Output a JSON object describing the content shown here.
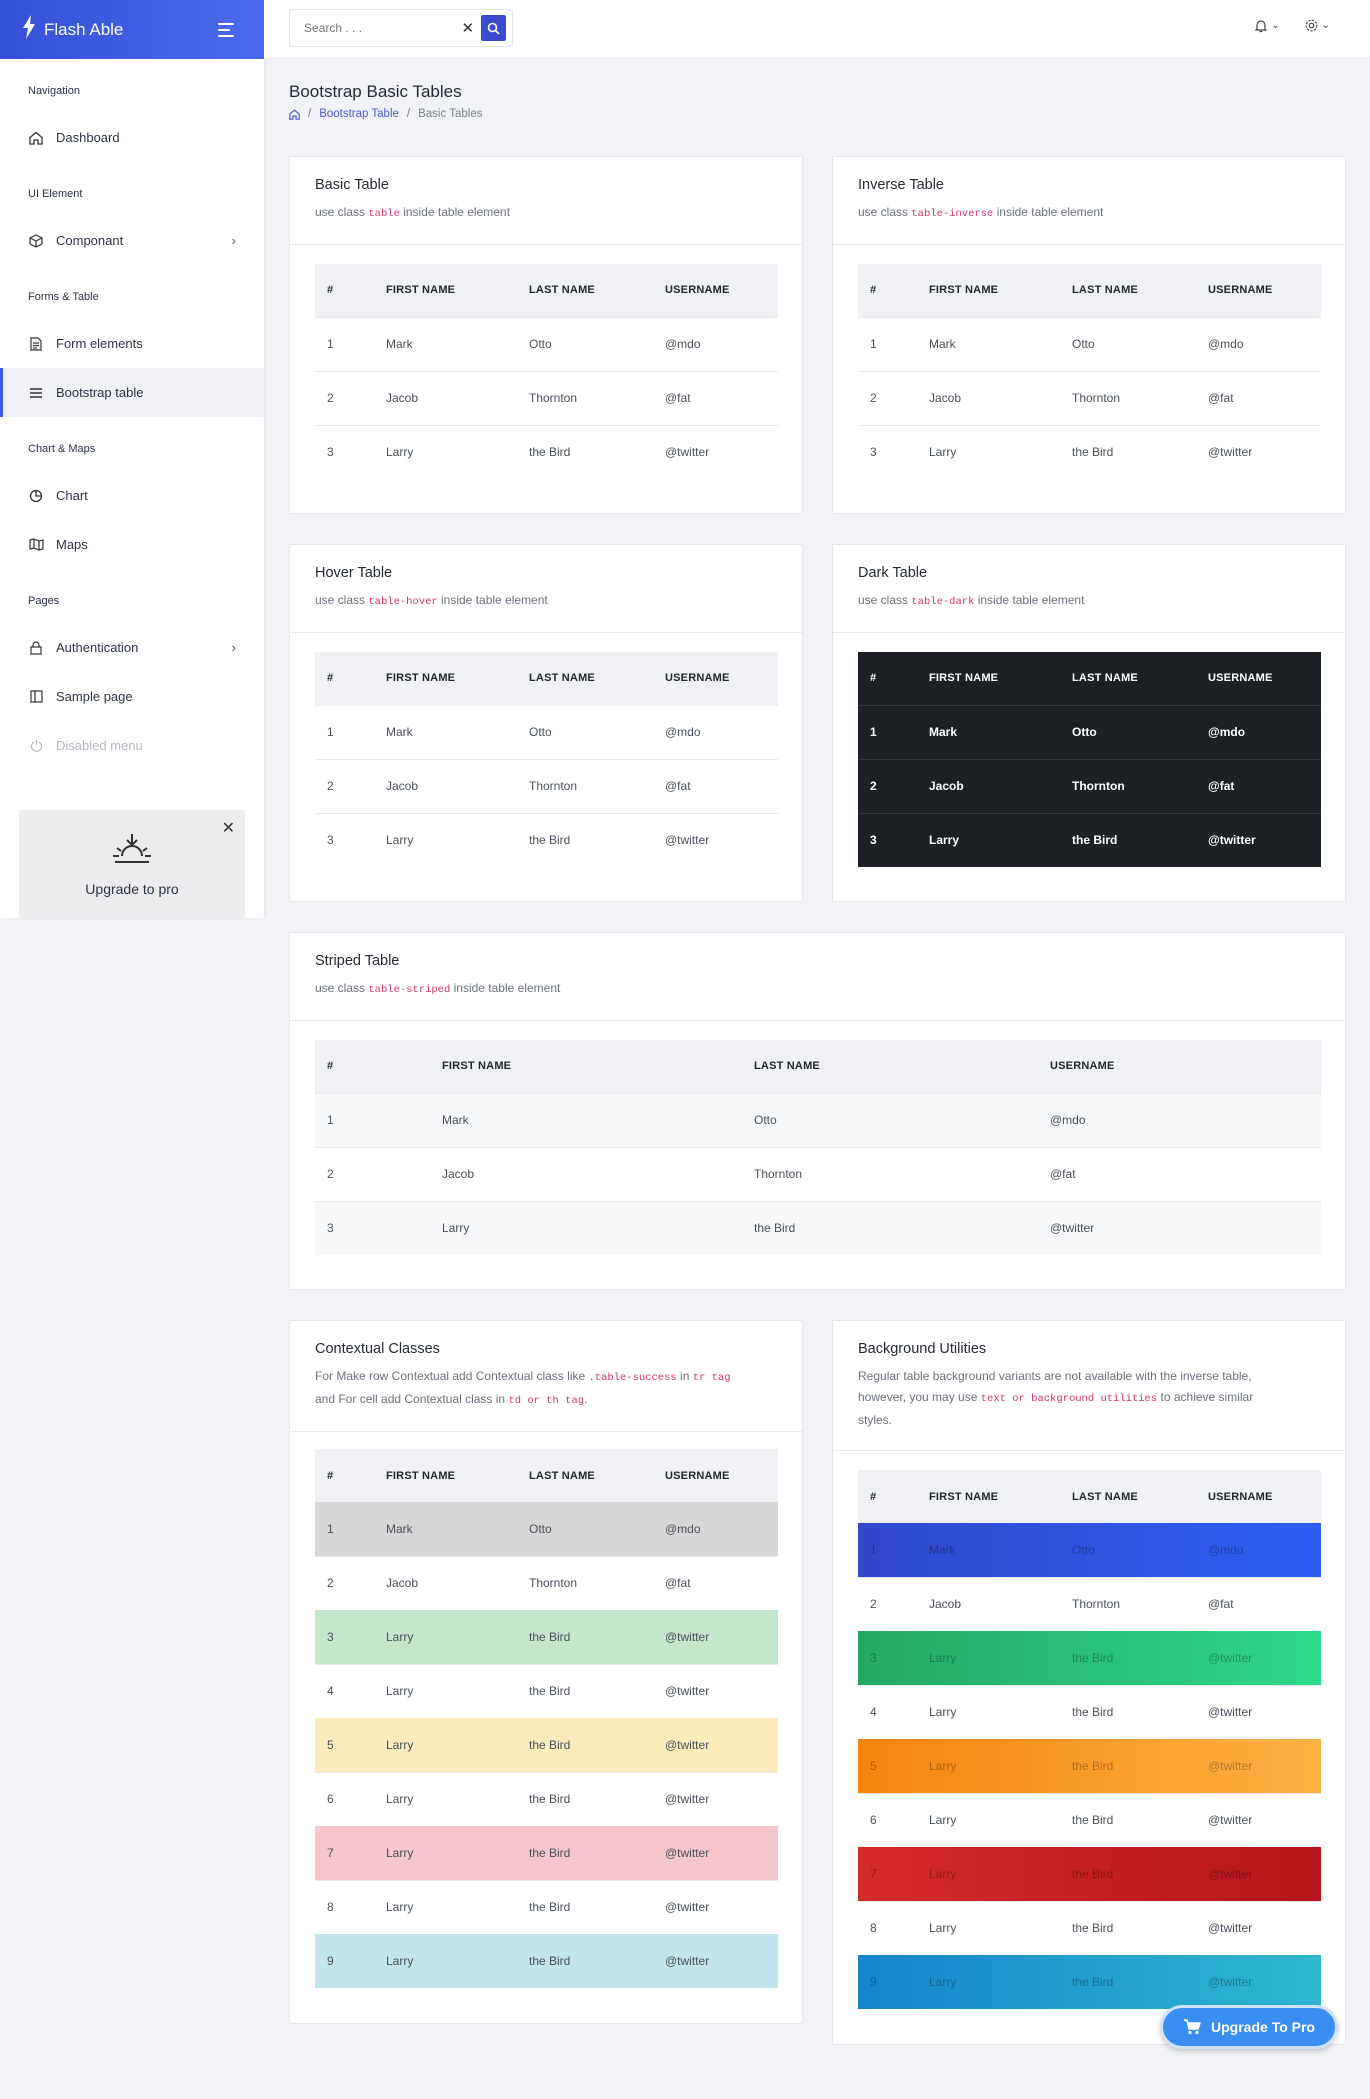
{
  "brand": {
    "name": "Flash Able"
  },
  "search": {
    "placeholder": "Search . . ."
  },
  "sidebar": {
    "captions": [
      "Navigation",
      "UI Element",
      "Forms & Table",
      "Chart & Maps",
      "Pages"
    ],
    "items": [
      {
        "label": "Dashboard",
        "icon": "home-icon"
      },
      {
        "label": "Componant",
        "icon": "box-icon"
      },
      {
        "label": "Form elements",
        "icon": "file-icon"
      },
      {
        "label": "Bootstrap table",
        "icon": "list-icon"
      },
      {
        "label": "Chart",
        "icon": "pie-chart-icon"
      },
      {
        "label": "Maps",
        "icon": "map-icon"
      },
      {
        "label": "Authentication",
        "icon": "lock-icon"
      },
      {
        "label": "Sample page",
        "icon": "sidebar-icon"
      },
      {
        "label": "Disabled menu",
        "icon": "power-icon"
      }
    ],
    "upgrade": {
      "label": "Upgrade to pro"
    }
  },
  "page": {
    "title": "Bootstrap Basic Tables",
    "breadcrumb": [
      "Bootstrap Table",
      "Basic Tables"
    ]
  },
  "headers": [
    "#",
    "FIRST NAME",
    "LAST NAME",
    "USERNAME"
  ],
  "rows3": [
    [
      "1",
      "Mark",
      "Otto",
      "@mdo"
    ],
    [
      "2",
      "Jacob",
      "Thornton",
      "@fat"
    ],
    [
      "3",
      "Larry",
      "the Bird",
      "@twitter"
    ]
  ],
  "rows9": [
    [
      "1",
      "Mark",
      "Otto",
      "@mdo"
    ],
    [
      "2",
      "Jacob",
      "Thornton",
      "@fat"
    ],
    [
      "3",
      "Larry",
      "the Bird",
      "@twitter"
    ],
    [
      "4",
      "Larry",
      "the Bird",
      "@twitter"
    ],
    [
      "5",
      "Larry",
      "the Bird",
      "@twitter"
    ],
    [
      "6",
      "Larry",
      "the Bird",
      "@twitter"
    ],
    [
      "7",
      "Larry",
      "the Bird",
      "@twitter"
    ],
    [
      "8",
      "Larry",
      "the Bird",
      "@twitter"
    ],
    [
      "9",
      "Larry",
      "the Bird",
      "@twitter"
    ]
  ],
  "cards": {
    "basic": {
      "title": "Basic Table",
      "pre": "use class ",
      "code": "table",
      "post": " inside table element"
    },
    "inverse": {
      "title": "Inverse Table",
      "pre": "use class ",
      "code": "table-inverse",
      "post": " inside table element"
    },
    "hover": {
      "title": "Hover Table",
      "pre": "use class ",
      "code": "table-hover",
      "post": " inside table element"
    },
    "dark": {
      "title": "Dark Table",
      "pre": "use class ",
      "code": "table-dark",
      "post": " inside table element"
    },
    "striped": {
      "title": "Striped Table",
      "pre": "use class ",
      "code": "table-striped",
      "post": " inside table element"
    },
    "contextual": {
      "title": "Contextual Classes",
      "line1_pre": "For Make row Contextual add Contextual class like ",
      "line1_code1": ".table-success",
      "line1_mid": " in ",
      "line1_code2": "tr tag",
      "line2_pre": "and For cell add Contextual class in ",
      "line2_code": "td or th tag",
      "line2_post": "."
    },
    "background": {
      "title": "Background Utilities",
      "line1": "Regular table background variants are not available with the inverse table,",
      "line2_pre": "however, you may use ",
      "line2_code": "text or background utilities",
      "line2_post": " to achieve similar",
      "line3": "styles."
    }
  },
  "colors": {
    "contextual_rows": [
      "#d6d6d6",
      "",
      "#c4e6cd",
      "",
      "#fcecb9",
      "",
      "#f5c7cc",
      "",
      "#c1e5ea"
    ],
    "background_rows": [
      [
        "#3048c8",
        "#2e5ff5"
      ],
      "",
      [
        "#25a862",
        "#2fd88a"
      ],
      "",
      [
        "#f5840e",
        "#fdb245"
      ],
      "",
      [
        "#d52a2a",
        "#b5151b"
      ],
      "",
      [
        "#1585cc",
        "#2fb8d0"
      ]
    ]
  },
  "fab": {
    "label": "Upgrade To Pro"
  }
}
